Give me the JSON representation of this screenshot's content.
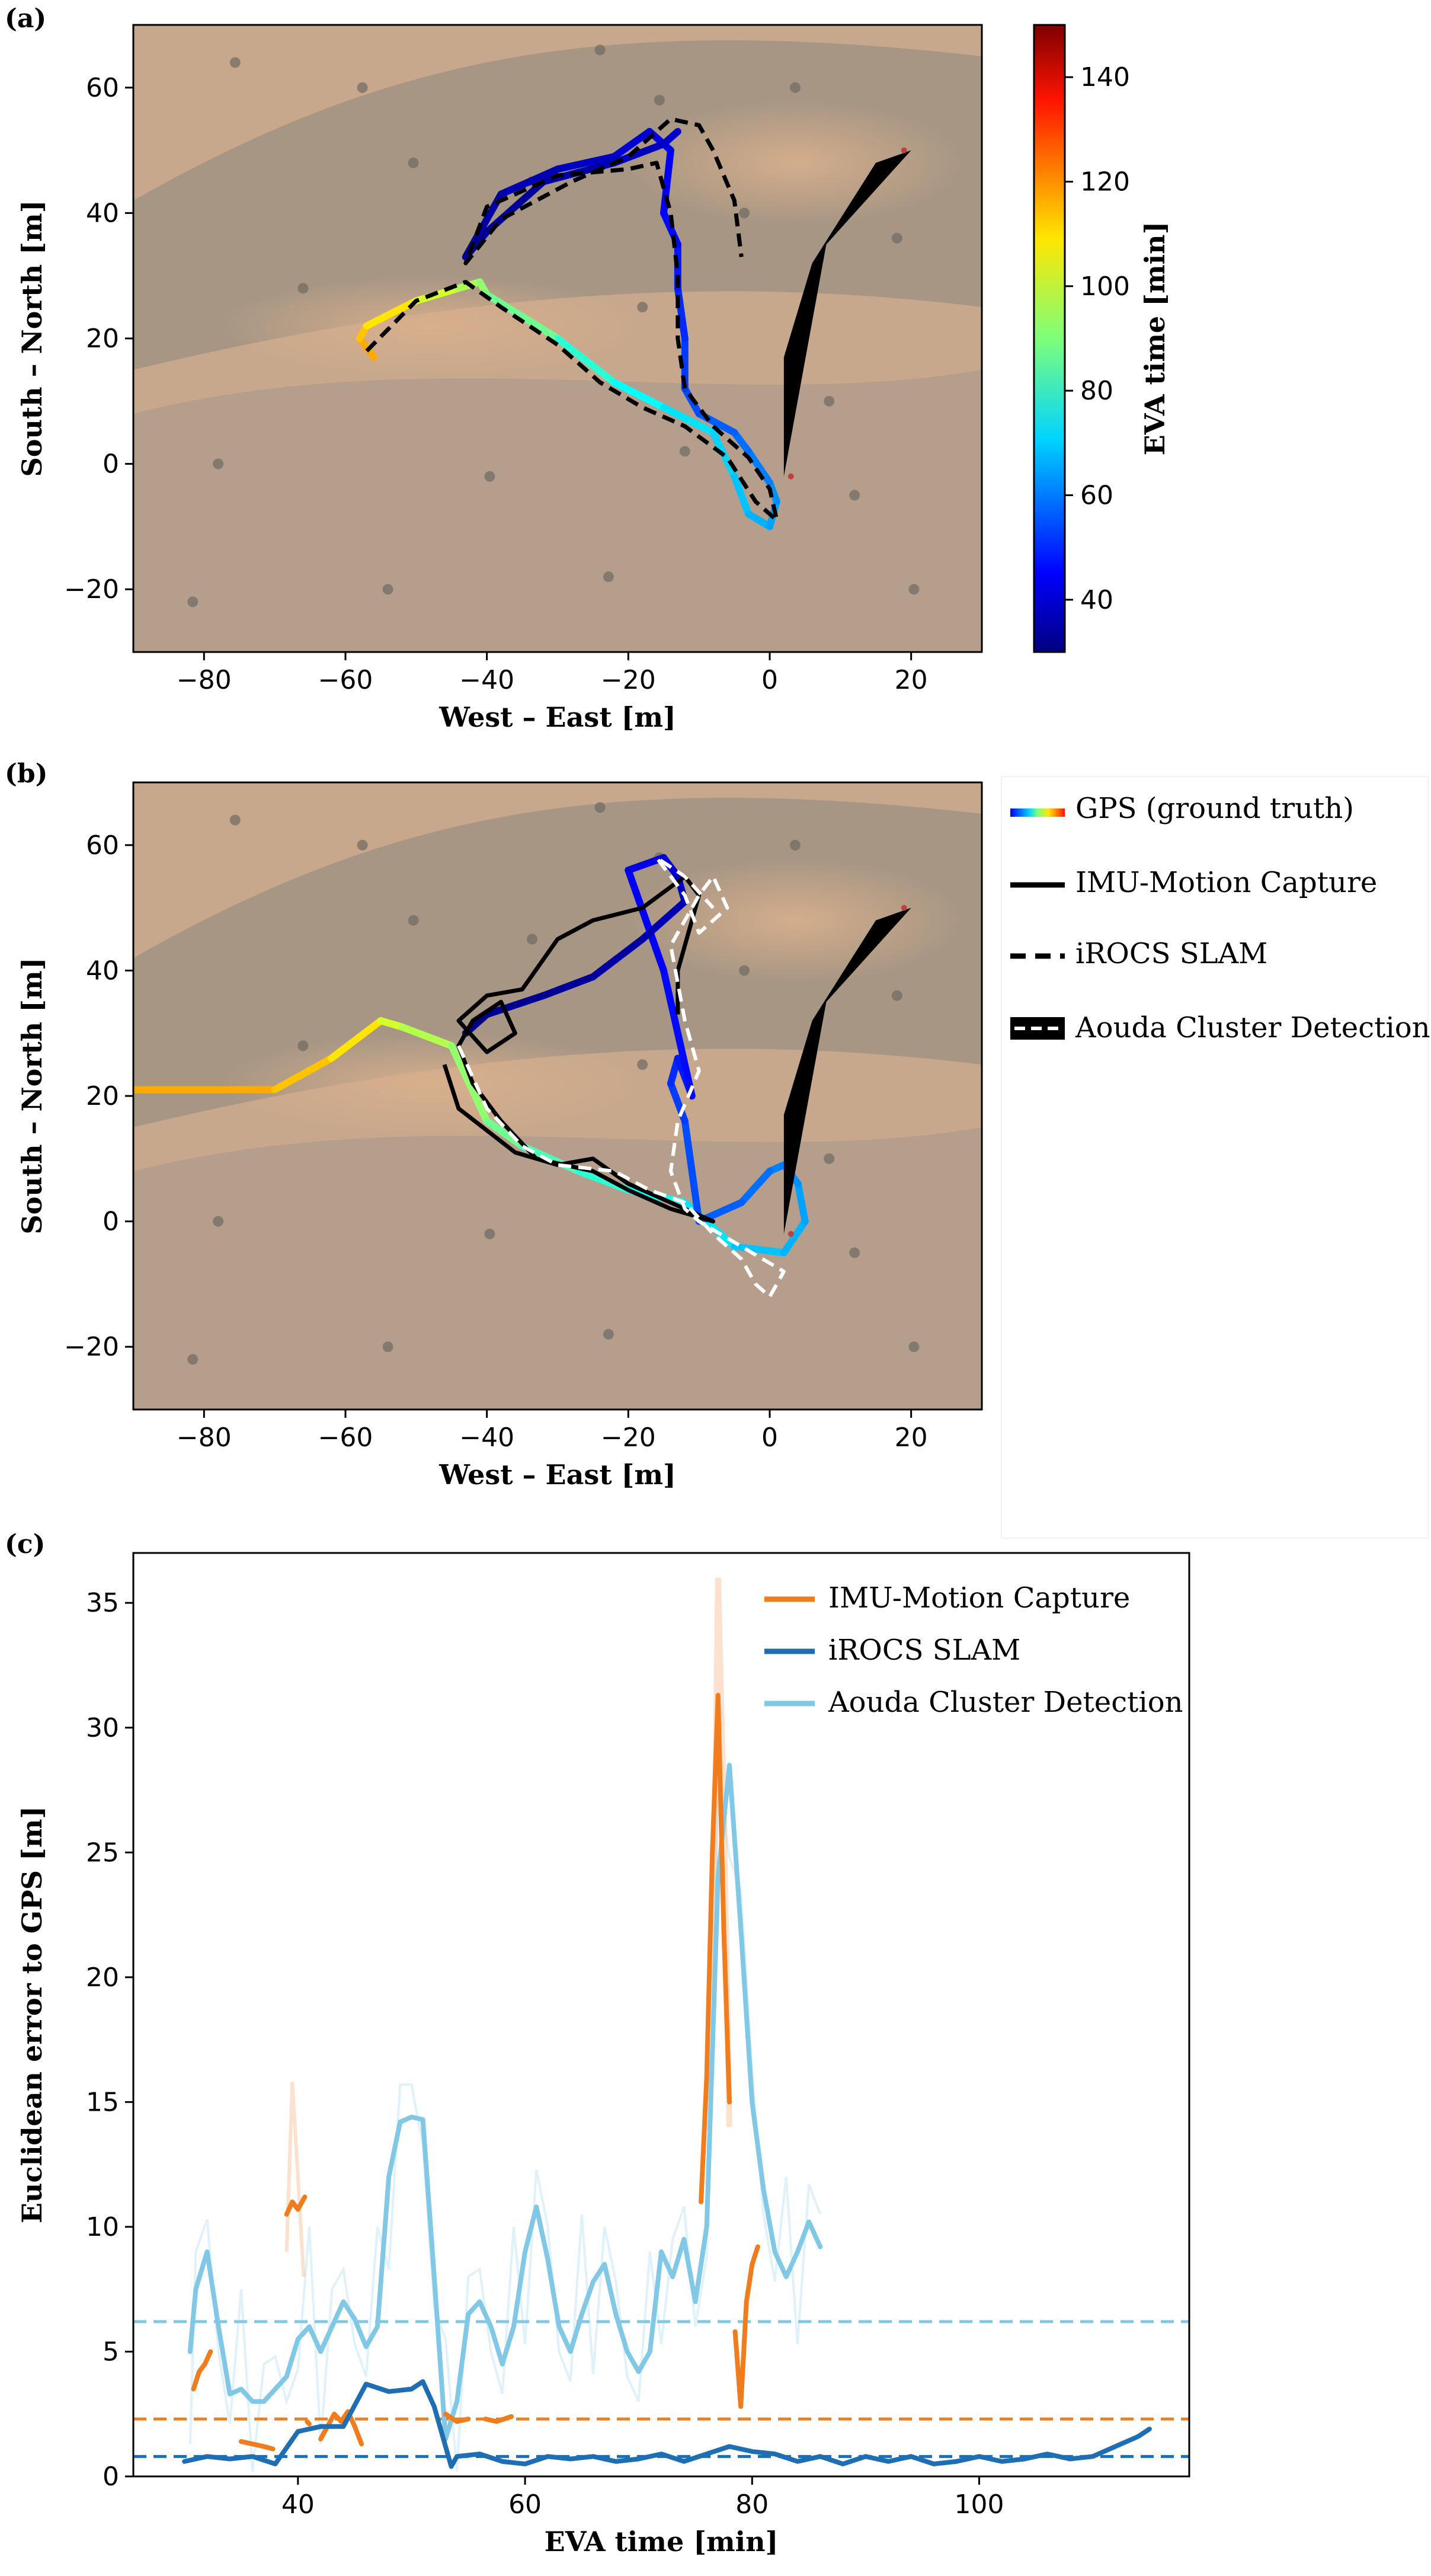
{
  "panels": {
    "a": "(a)",
    "b": "(b)",
    "c": "(c)"
  },
  "colors": {
    "map_bg": "#c8a88c",
    "map_dark": "#9c9082",
    "gps_track": "#000000",
    "imu": "#f07c1e",
    "iROCS": "#1f6eb4",
    "aouda": "#80c8e6"
  },
  "chart_data": [
    {
      "id": "a",
      "type": "line",
      "xlabel": "West – East [m]",
      "ylabel": "South – North [m]",
      "xlim": [
        -90,
        30
      ],
      "ylim": [
        -30,
        70
      ],
      "xticks": [
        -80,
        -60,
        -40,
        -20,
        0,
        20
      ],
      "yticks": [
        -20,
        0,
        20,
        40,
        60
      ],
      "colorbar": {
        "label": "EVA time [min]",
        "range": [
          30,
          150
        ],
        "ticks": [
          40,
          60,
          80,
          100,
          120,
          140
        ],
        "colormap": "jet"
      },
      "series": [
        {
          "style": "gps-colored",
          "x": [
            -56,
            -58,
            -57,
            -50,
            -44,
            -41,
            -40,
            -30,
            -22,
            -15,
            -8,
            -5,
            -3,
            0,
            1,
            0,
            -3,
            -5,
            -10,
            -12,
            -12,
            -13,
            -13,
            -15,
            -14,
            -17,
            -22,
            -30,
            -38,
            -43,
            -40,
            -32,
            -22,
            -15,
            -13
          ],
          "y": [
            17,
            20,
            22,
            26,
            28,
            29,
            27,
            20,
            13,
            9,
            5,
            -2,
            -8,
            -10,
            -6,
            -3,
            2,
            5,
            8,
            12,
            20,
            28,
            35,
            40,
            50,
            53,
            49,
            47,
            43,
            33,
            37,
            45,
            48,
            51,
            53
          ],
          "t": [
            115,
            112,
            108,
            100,
            95,
            92,
            88,
            80,
            75,
            72,
            70,
            68,
            66,
            64,
            62,
            60,
            58,
            56,
            54,
            52,
            50,
            48,
            46,
            44,
            42,
            40,
            38,
            36,
            34,
            32,
            33,
            35,
            37,
            39,
            41
          ]
        },
        {
          "style": "dashed",
          "x": [
            -57,
            -50,
            -43,
            -38,
            -30,
            -24,
            -18,
            -12,
            -6,
            -2,
            1,
            0,
            -3,
            -8,
            -12,
            -13,
            -13,
            -14,
            -16,
            -20,
            -30,
            -40,
            -43,
            -38,
            -28,
            -20,
            -14,
            -10,
            -8,
            -5,
            -4
          ],
          "y": [
            18,
            26,
            29,
            25,
            19,
            13,
            9,
            6,
            1,
            -6,
            -9,
            -4,
            1,
            6,
            12,
            20,
            30,
            40,
            48,
            47,
            46,
            41,
            32,
            39,
            45,
            49,
            55,
            54,
            50,
            42,
            33
          ]
        },
        {
          "style": "aouda-bar",
          "x": [
            2,
            8,
            20,
            15,
            6,
            2
          ],
          "y": [
            -2,
            35,
            50,
            48,
            32,
            17
          ]
        }
      ]
    },
    {
      "id": "b",
      "type": "line",
      "xlabel": "West – East [m]",
      "ylabel": "South – North [m]",
      "xlim": [
        -90,
        30
      ],
      "ylim": [
        -30,
        70
      ],
      "xticks": [
        -80,
        -60,
        -40,
        -20,
        0,
        20
      ],
      "yticks": [
        -20,
        0,
        20,
        40,
        60
      ],
      "legend": {
        "position": "right",
        "entries": [
          "GPS (ground truth)",
          "IMU-Motion Capture",
          "iROCS SLAM",
          "Aouda Cluster Detection"
        ]
      },
      "series": [
        {
          "style": "gps-colored",
          "x": [
            -90,
            -70,
            -62,
            -55,
            -52,
            -45,
            -40,
            -35,
            -27,
            -20,
            -12,
            -5,
            2,
            5,
            4,
            2,
            0,
            -4,
            -10,
            -12,
            -14,
            -13,
            -11,
            -15,
            -20,
            -15,
            -13,
            -12,
            -18,
            -25,
            -32,
            -40,
            -43
          ],
          "y": [
            21,
            21,
            26,
            32,
            31,
            28,
            16,
            12,
            8,
            5,
            3,
            -4,
            -5,
            0,
            6,
            9,
            8,
            3,
            0,
            16,
            22,
            26,
            20,
            40,
            56,
            58,
            55,
            51,
            45,
            39,
            36,
            33,
            30
          ],
          "t": [
            115,
            112,
            108,
            100,
            96,
            92,
            88,
            84,
            80,
            76,
            72,
            68,
            66,
            64,
            62,
            60,
            58,
            56,
            54,
            52,
            50,
            48,
            46,
            44,
            42,
            40,
            38,
            36,
            34,
            33,
            32,
            31,
            30
          ]
        },
        {
          "style": "solid-black",
          "x": [
            -46,
            -44,
            -36,
            -30,
            -25,
            -20,
            -14,
            -8,
            -14,
            -20,
            -25,
            -33,
            -38,
            -42,
            -44,
            -42,
            -38,
            -36,
            -40,
            -44,
            -40,
            -35,
            -30,
            -25,
            -18,
            -12,
            -10,
            -13,
            -13
          ],
          "y": [
            25,
            18,
            11,
            9,
            10,
            6,
            3,
            0,
            2,
            5,
            8,
            10,
            16,
            22,
            28,
            32,
            35,
            30,
            27,
            32,
            36,
            37,
            45,
            48,
            50,
            55,
            52,
            40,
            33
          ]
        },
        {
          "style": "dashed-white",
          "x": [
            -44,
            -40,
            -35,
            -30,
            -22,
            -17,
            -12,
            -8,
            -4,
            -2,
            0,
            2,
            -4,
            -10,
            -12,
            -14,
            -13,
            -10,
            -12,
            -14,
            -10,
            -8,
            -6,
            -10,
            -12,
            -16,
            -12,
            -8
          ],
          "y": [
            28,
            18,
            12,
            9,
            8,
            5,
            3,
            -2,
            -6,
            -10,
            -12,
            -8,
            -4,
            0,
            2,
            8,
            16,
            24,
            32,
            44,
            52,
            55,
            50,
            46,
            52,
            58,
            55,
            50
          ]
        },
        {
          "style": "aouda-bar",
          "x": [
            2,
            8,
            20,
            15,
            6,
            2
          ],
          "y": [
            -2,
            35,
            50,
            48,
            32,
            17
          ]
        }
      ]
    },
    {
      "id": "c",
      "type": "line",
      "xlabel": "EVA time [min]",
      "ylabel": "Euclidean error to GPS [m]",
      "xlim": [
        25.5,
        118.5
      ],
      "ylim": [
        0,
        37
      ],
      "xticks": [
        40,
        60,
        80,
        100
      ],
      "yticks": [
        0,
        5,
        10,
        15,
        20,
        25,
        30,
        35
      ],
      "legend": {
        "position": "top-right",
        "entries": [
          "IMU-Motion Capture",
          "iROCS SLAM",
          "Aouda Cluster Detection"
        ]
      },
      "hlines": [
        {
          "series": "Aouda Cluster Detection",
          "value": 6.2
        },
        {
          "series": "IMU-Motion Capture",
          "value": 2.3
        },
        {
          "series": "iROCS SLAM",
          "value": 0.8
        }
      ],
      "series": [
        {
          "name": "Aouda Cluster Detection",
          "x": [
            30.5,
            31,
            32,
            33,
            34,
            35,
            36,
            37,
            38,
            39,
            40,
            41,
            42,
            43,
            44,
            45,
            46,
            47,
            48,
            49,
            50,
            51,
            52,
            53,
            54,
            55,
            56,
            57,
            58,
            59,
            60,
            61,
            62,
            63,
            64,
            65,
            66,
            67,
            68,
            69,
            70,
            71,
            72,
            73,
            74,
            75,
            76,
            77,
            78,
            79,
            80,
            81,
            82,
            83,
            84,
            85,
            86
          ],
          "y": [
            5,
            7.5,
            9,
            6,
            3.3,
            3.5,
            3,
            3,
            3.5,
            4,
            5.5,
            6,
            5,
            6,
            7,
            6.3,
            5.2,
            6,
            12,
            14.2,
            14.4,
            14.3,
            8,
            1.5,
            3,
            6.5,
            7,
            6,
            4.5,
            6,
            9,
            10.8,
            8.7,
            6,
            5,
            6.5,
            7.8,
            8.5,
            6.5,
            5,
            4.2,
            5,
            9,
            8,
            9.5,
            7,
            10,
            24,
            28.5,
            22,
            15,
            11.5,
            9,
            8,
            9,
            10.2,
            9.2
          ]
        },
        {
          "name": "IMU-Motion Capture",
          "segments": [
            {
              "x": [
                30.8,
                31.3,
                31.8,
                32.3
              ],
              "y": [
                3.5,
                4.2,
                4.5,
                5
              ]
            },
            {
              "x": [
                35,
                36,
                37,
                37.8
              ],
              "y": [
                1.4,
                1.3,
                1.2,
                1.1
              ]
            },
            {
              "x": [
                39,
                39.5,
                40,
                40.6
              ],
              "y": [
                10.5,
                11,
                10.7,
                11.2
              ]
            },
            {
              "x": [
                40.8,
                41
              ],
              "y": [
                2.2,
                2.1
              ]
            },
            {
              "x": [
                42,
                42.6,
                43.2,
                43.8,
                44.4,
                45,
                45.6
              ],
              "y": [
                1.5,
                2,
                2.5,
                2.2,
                2.6,
                2,
                1.3
              ]
            },
            {
              "x": [
                53,
                54,
                55
              ],
              "y": [
                2.5,
                2.2,
                2.3
              ]
            },
            {
              "x": [
                56.5,
                57.5,
                58.8
              ],
              "y": [
                2.3,
                2.2,
                2.4
              ]
            },
            {
              "x": [
                75.5,
                76,
                76.5,
                77,
                77.5,
                78
              ],
              "y": [
                11,
                16,
                25,
                31.3,
                22,
                15
              ]
            },
            {
              "x": [
                78.5,
                79,
                79.5,
                80,
                80.5
              ],
              "y": [
                5.8,
                2.8,
                7,
                8.5,
                9.2
              ]
            }
          ]
        },
        {
          "name": "iROCS SLAM",
          "x": [
            30,
            32,
            34,
            36,
            38,
            40,
            42,
            44,
            46,
            48,
            50,
            51,
            52,
            53,
            53.5,
            54,
            56,
            58,
            60,
            62,
            64,
            66,
            68,
            70,
            72,
            74,
            76,
            78,
            80,
            82,
            84,
            86,
            88,
            90,
            92,
            94,
            96,
            98,
            100,
            102,
            104,
            106,
            108,
            110,
            112,
            114,
            115
          ],
          "y": [
            0.6,
            0.8,
            0.7,
            0.8,
            0.5,
            1.8,
            2,
            2,
            3.7,
            3.4,
            3.5,
            3.8,
            2.8,
            1.2,
            0.4,
            0.8,
            0.9,
            0.6,
            0.5,
            0.8,
            0.7,
            0.8,
            0.6,
            0.7,
            0.9,
            0.6,
            0.9,
            1.2,
            1,
            0.9,
            0.6,
            0.8,
            0.5,
            0.8,
            0.6,
            0.8,
            0.5,
            0.6,
            0.8,
            0.6,
            0.7,
            0.9,
            0.7,
            0.8,
            1.2,
            1.6,
            1.9
          ]
        }
      ]
    }
  ]
}
